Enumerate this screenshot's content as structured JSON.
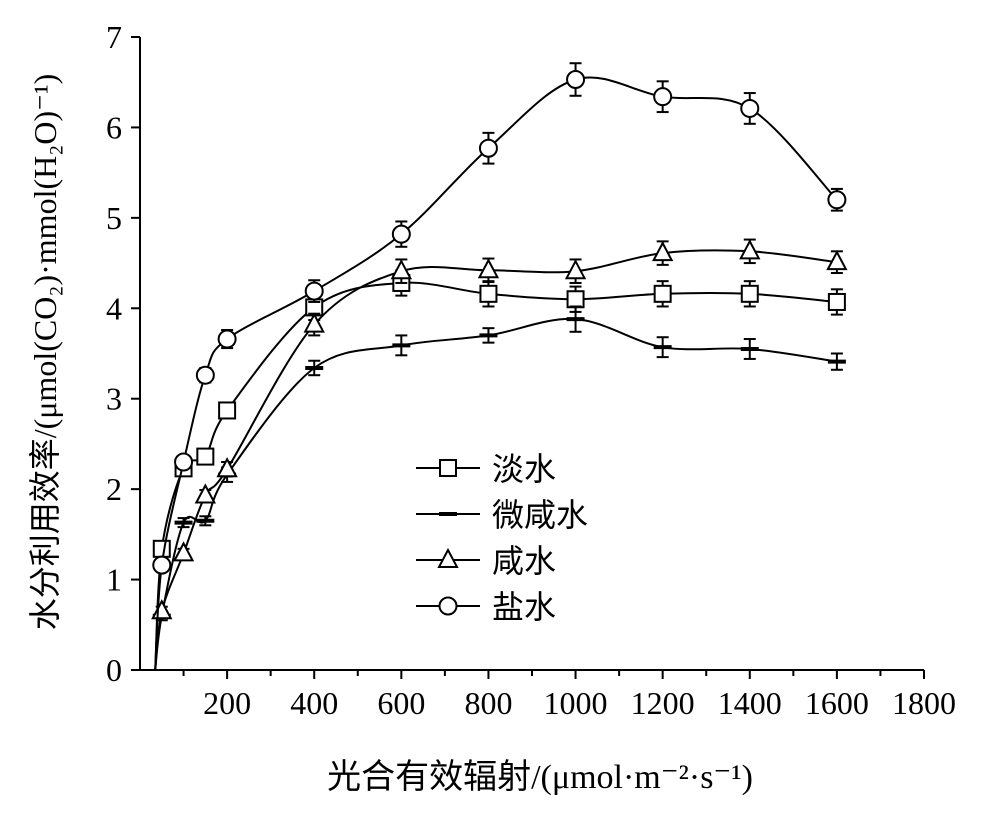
{
  "chart_data": {
    "type": "line",
    "xlabel": "光合有效辐射/(μmol·m⁻²·s⁻¹)",
    "ylabel": "水分利用效率/(μmol(CO₂)·mmol(H₂O)⁻¹)",
    "xlim": [
      0,
      1800
    ],
    "ylim": [
      0,
      7
    ],
    "xticks": [
      "200",
      "400",
      "600",
      "800",
      "1000",
      "1200",
      "1400",
      "1600",
      "1800"
    ],
    "yticks": [
      "0",
      "1",
      "2",
      "3",
      "4",
      "5",
      "6",
      "7"
    ],
    "grid": false,
    "legend_position": "center",
    "series": [
      {
        "name": "淡水",
        "marker": "square",
        "x": [
          50,
          100,
          150,
          200,
          400,
          600,
          800,
          1000,
          1200,
          1400,
          1600
        ],
        "y": [
          1.34,
          2.23,
          2.36,
          2.87,
          4.01,
          4.28,
          4.16,
          4.1,
          4.16,
          4.16,
          4.07
        ],
        "err": [
          0.08,
          0.08,
          0.08,
          0.08,
          0.14,
          0.14,
          0.14,
          0.14,
          0.14,
          0.14,
          0.14
        ]
      },
      {
        "name": "微咸水",
        "marker": "dash",
        "x": [
          50,
          100,
          150,
          200,
          400,
          600,
          800,
          1000,
          1200,
          1400,
          1600
        ],
        "y": [
          0.6,
          1.63,
          1.65,
          2.16,
          3.34,
          3.59,
          3.7,
          3.88,
          3.57,
          3.55,
          3.41
        ],
        "err": [
          0.05,
          0.05,
          0.05,
          0.08,
          0.08,
          0.11,
          0.08,
          0.14,
          0.11,
          0.11,
          0.09
        ]
      },
      {
        "name": "咸水",
        "marker": "triangle",
        "x": [
          50,
          100,
          150,
          200,
          400,
          600,
          800,
          1000,
          1200,
          1400,
          1600
        ],
        "y": [
          0.65,
          1.29,
          1.93,
          2.22,
          3.82,
          4.41,
          4.42,
          4.41,
          4.61,
          4.63,
          4.51
        ],
        "err": [
          0.05,
          0.05,
          0.06,
          0.08,
          0.12,
          0.13,
          0.13,
          0.13,
          0.13,
          0.13,
          0.12
        ]
      },
      {
        "name": "盐水",
        "marker": "circle",
        "x": [
          50,
          100,
          150,
          200,
          400,
          600,
          800,
          1000,
          1200,
          1400,
          1600
        ],
        "y": [
          1.16,
          2.3,
          3.26,
          3.66,
          4.19,
          4.82,
          5.77,
          6.53,
          6.34,
          6.21,
          5.2
        ],
        "err": [
          0.06,
          0.06,
          0.08,
          0.1,
          0.12,
          0.14,
          0.17,
          0.18,
          0.17,
          0.17,
          0.12
        ]
      }
    ]
  }
}
